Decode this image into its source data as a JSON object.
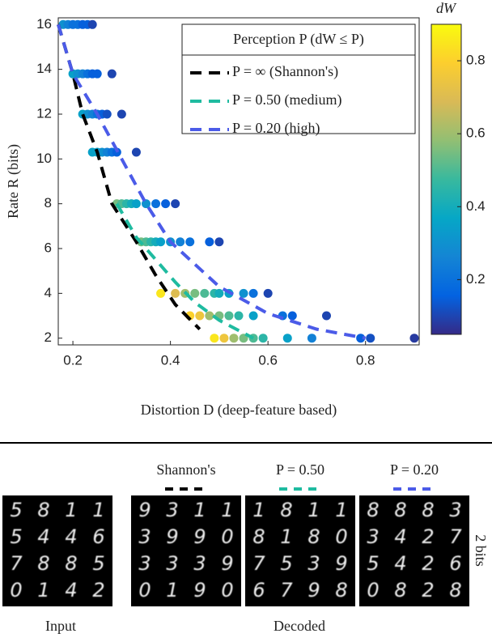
{
  "chart_data": {
    "type": "scatter",
    "xlabel": "Distortion D (deep-feature based)",
    "ylabel": "Rate R (bits)",
    "xlim": [
      0.17,
      0.91
    ],
    "ylim": [
      1.7,
      16.3
    ],
    "xticks": [
      0.2,
      0.4,
      0.6,
      0.8
    ],
    "yticks": [
      2,
      4,
      6,
      8,
      10,
      12,
      14,
      16
    ],
    "legend_title": "Perception P (dW ≤ P)",
    "legend_position": "upper right",
    "colorbar_label": "dW",
    "clim": [
      0.05,
      0.9
    ],
    "cticks": [
      0.2,
      0.4,
      0.6,
      0.8
    ],
    "colormap": [
      "#352a87",
      "#0363e1",
      "#1485d4",
      "#06a7c6",
      "#38b99e",
      "#92bf73",
      "#d9ba56",
      "#fcce2e",
      "#f9fb0e"
    ],
    "scatter": {
      "x": [
        0.18,
        0.19,
        0.2,
        0.21,
        0.22,
        0.23,
        0.24,
        0.2,
        0.21,
        0.22,
        0.23,
        0.24,
        0.25,
        0.28,
        0.22,
        0.23,
        0.24,
        0.25,
        0.26,
        0.27,
        0.3,
        0.24,
        0.25,
        0.26,
        0.27,
        0.28,
        0.29,
        0.33,
        0.29,
        0.3,
        0.31,
        0.32,
        0.33,
        0.35,
        0.37,
        0.39,
        0.41,
        0.34,
        0.35,
        0.36,
        0.37,
        0.38,
        0.4,
        0.42,
        0.44,
        0.48,
        0.5,
        0.38,
        0.41,
        0.43,
        0.45,
        0.47,
        0.49,
        0.5,
        0.52,
        0.55,
        0.57,
        0.6,
        0.44,
        0.46,
        0.48,
        0.5,
        0.52,
        0.54,
        0.57,
        0.63,
        0.65,
        0.72,
        0.49,
        0.51,
        0.53,
        0.55,
        0.57,
        0.59,
        0.64,
        0.69,
        0.79,
        0.81,
        0.9
      ],
      "y": [
        16,
        16,
        16,
        16,
        16,
        16,
        16,
        13.8,
        13.8,
        13.8,
        13.8,
        13.8,
        13.8,
        13.8,
        12,
        12,
        12,
        12,
        12,
        12,
        12,
        10.3,
        10.3,
        10.3,
        10.3,
        10.3,
        10.3,
        10.3,
        8,
        8,
        8,
        8,
        8,
        8,
        8,
        8,
        8,
        6.3,
        6.3,
        6.3,
        6.3,
        6.3,
        6.3,
        6.3,
        6.3,
        6.3,
        6.3,
        4,
        4,
        4,
        4,
        4,
        4,
        4,
        4,
        4,
        4,
        4,
        3,
        3,
        3,
        3,
        3,
        3,
        3,
        3,
        3,
        3,
        2,
        2,
        2,
        2,
        2,
        2,
        2,
        2,
        2,
        2,
        2
      ],
      "dW": [
        0.3,
        0.25,
        0.2,
        0.2,
        0.15,
        0.15,
        0.1,
        0.35,
        0.3,
        0.25,
        0.2,
        0.15,
        0.15,
        0.1,
        0.35,
        0.3,
        0.25,
        0.2,
        0.15,
        0.12,
        0.1,
        0.35,
        0.35,
        0.3,
        0.25,
        0.2,
        0.15,
        0.1,
        0.55,
        0.5,
        0.45,
        0.4,
        0.35,
        0.3,
        0.2,
        0.15,
        0.1,
        0.55,
        0.5,
        0.45,
        0.4,
        0.35,
        0.3,
        0.25,
        0.2,
        0.15,
        0.1,
        0.85,
        0.7,
        0.6,
        0.55,
        0.5,
        0.45,
        0.4,
        0.35,
        0.3,
        0.2,
        0.1,
        0.8,
        0.75,
        0.6,
        0.55,
        0.5,
        0.45,
        0.35,
        0.2,
        0.15,
        0.1,
        0.85,
        0.75,
        0.6,
        0.55,
        0.5,
        0.45,
        0.35,
        0.25,
        0.15,
        0.12,
        0.08
      ]
    },
    "lines": [
      {
        "name": "P = ∞ (Shannon's)",
        "color": "#000000",
        "x": [
          0.17,
          0.2,
          0.22,
          0.25,
          0.28,
          0.33,
          0.37,
          0.41,
          0.46
        ],
        "y": [
          16,
          13.8,
          12,
          10.3,
          8,
          6.3,
          4.8,
          3.5,
          2.4
        ]
      },
      {
        "name": "P = 0.50 (medium)",
        "color": "#1fbba0",
        "x": [
          0.29,
          0.33,
          0.37,
          0.41,
          0.45,
          0.5,
          0.57
        ],
        "y": [
          8,
          6.5,
          5.5,
          4.5,
          3.6,
          2.8,
          2
        ]
      },
      {
        "name": "P = 0.20 (high)",
        "color": "#4b5be8",
        "x": [
          0.17,
          0.2,
          0.25,
          0.3,
          0.35,
          0.4,
          0.5,
          0.6,
          0.7,
          0.8
        ],
        "y": [
          16,
          13.8,
          12,
          10,
          8,
          6.3,
          4.3,
          3.1,
          2.4,
          2
        ]
      }
    ]
  },
  "panels": {
    "input_label": "Input",
    "decoded_label": "Decoded",
    "rate_label": "2 bits",
    "grids": [
      {
        "rows": [
          "5811",
          "5446",
          "7885",
          "0142"
        ]
      },
      {
        "title": "Shannon's",
        "rows": [
          "9311",
          "3990",
          "3339",
          "0190"
        ]
      },
      {
        "title": "P = 0.50",
        "rows": [
          "1811",
          "8180",
          "7539",
          "6798"
        ]
      },
      {
        "title": "P = 0.20",
        "rows": [
          "8883",
          "3427",
          "5426",
          "0828"
        ]
      }
    ]
  }
}
